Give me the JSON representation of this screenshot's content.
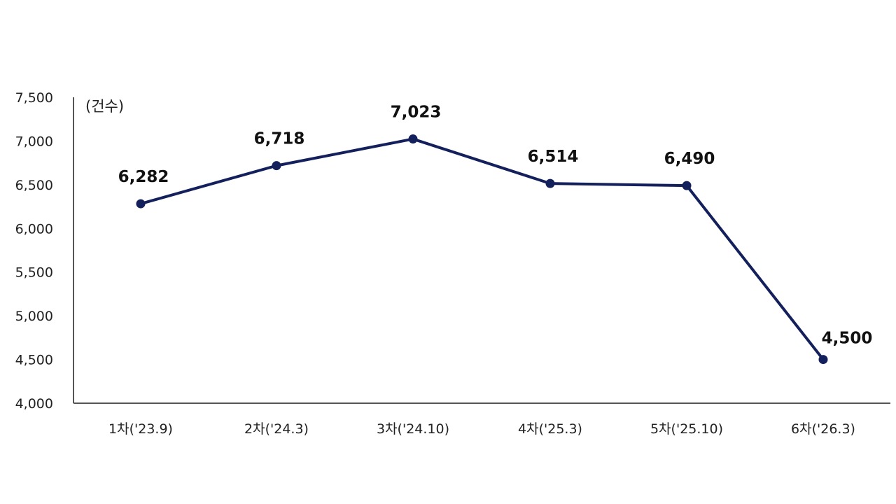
{
  "chart_data": {
    "type": "line",
    "unit_label": "(건수)",
    "categories": [
      "1차('23.9)",
      "2차('24.3)",
      "3차('24.10)",
      "4차('25.3)",
      "5차('25.10)",
      "6차('26.3)"
    ],
    "values": [
      6282,
      6718,
      7023,
      6514,
      6490,
      4500
    ],
    "data_labels": [
      "6,282",
      "6,718",
      "7,023",
      "6,514",
      "6,490",
      "4,500"
    ],
    "y_ticks": [
      4000,
      4500,
      5000,
      5500,
      6000,
      6500,
      7000,
      7500
    ],
    "y_tick_labels": [
      "4,000",
      "4,500",
      "5,000",
      "5,500",
      "6,000",
      "6,500",
      "7,000",
      "7,500"
    ],
    "ylim": [
      4000,
      7500
    ],
    "grid": false,
    "legend": "none",
    "colors": {
      "line": "#14205c",
      "axis": "#555555"
    }
  }
}
